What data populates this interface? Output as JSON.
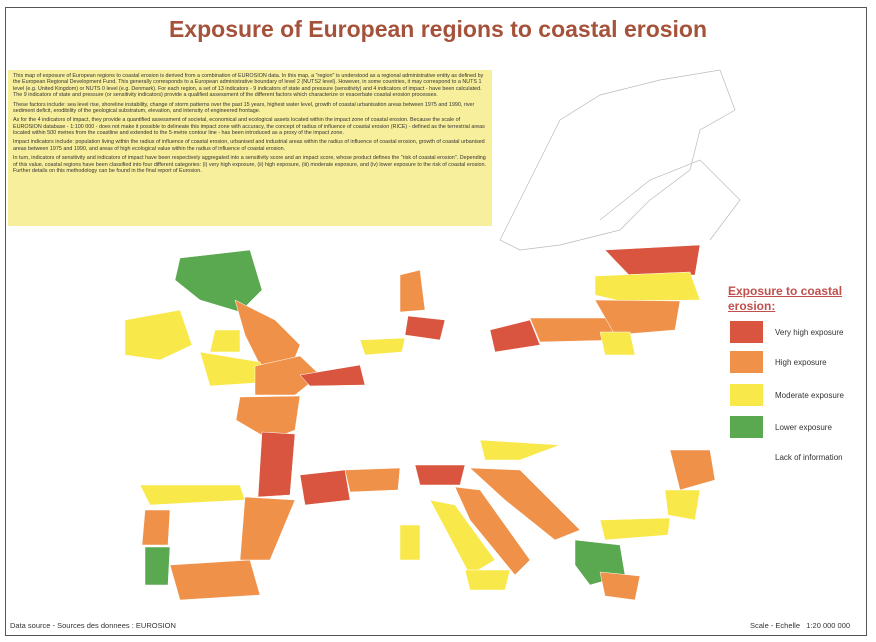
{
  "header": {
    "title": "Exposure of European regions to coastal erosion"
  },
  "description": {
    "paragraphs": [
      "This map of exposure of European regions to coastal erosion is derived from a combination of EUROSION data. In this map, a \"region\" is understood as a regional administrative entity as defined by the European Regional Development Fund. This generally corresponds to a European administrative boundary of level 2 (NUTS2 level). However, in some countries, it may correspond to a NUTS 1 level (e.g. United Kingdom) or NUTS 0 level (e.g. Denmark). For each region, a set of 13 indicators - 9 indicators of state and pressure (sensitivity) and 4 indicators of impact - have been calculated. The 9 indicators of state and pressure (or sensitivity indicators) provide a qualified assessment of the different factors which characterize or exacerbate coastal erosion processes.",
      "These factors include: sea level rise, shoreline instability, change of storm patterns over the past 15 years, highest water level, growth of coastal urbanisation areas between 1975 and 1990, river sediment deficit, erodibility of the geological substratum, elevation, and intensity of engineered frontage.",
      "As for the 4 indicators of impact, they provide a quantified assessment of societal, economical and ecological assets located within the impact zone of coastal erosion. Because the scale of EUROSION database - 1:100 000 - does not make it possible to delineate this impact zone with accuracy, the concept of radius of influence of coastal erosion (RICE) - defined as the terrestrial areas located within 500 metres from the coastline and extended to the 5-metre contour line - has been introduced as a proxy of the impact zone.",
      "Impact indicators include: population living within the radius of influence of coastal erosion, urbanised and industrial areas within the radius of influence of coastal erosion, growth of coastal urbanised areas between 1975 and 1990, and areas of high ecological value within the radius of influence of coastal erosion.",
      "In turn, indicators of sensitivity and indicators of impact have been respectively aggregated into a sensitivity score and an impact score, whose product defines the \"risk of coastal erosion\". Depending of this value, coastal regions have been classified into four different categories: (i) very high exposure, (ii) high exposure, (iii) moderate exposure, and (iv) lower exposure to the risk of coastal erosion. Further details on this methodology can be found in the final report of Eurosion."
    ]
  },
  "legend": {
    "title": "Exposure to coastal erosion:",
    "items": [
      {
        "label": "Very high exposure",
        "color": "#d9553f"
      },
      {
        "label": "High exposure",
        "color": "#f0914a"
      },
      {
        "label": "Moderate exposure",
        "color": "#f9e84a"
      },
      {
        "label": "Lower exposure",
        "color": "#5aa850"
      },
      {
        "label": "Lack of information"
      }
    ]
  },
  "footer": {
    "source": "Data source - Sources des donnees : EUROSION",
    "scale": "Scale - Echelle   1:20 000 000"
  }
}
